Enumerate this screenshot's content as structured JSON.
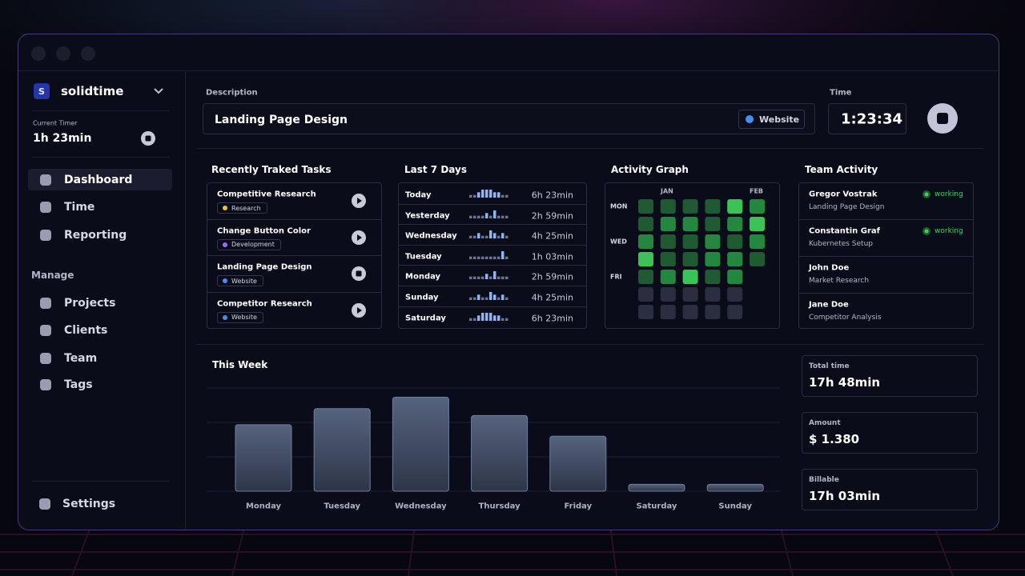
{
  "sidebar": {
    "org_initial": "S",
    "org": "solidtime",
    "current_timer_label": "Current Timer",
    "current_timer": "1h 23min",
    "nav": [
      "Dashboard",
      "Time",
      "Reporting"
    ],
    "manage_label": "Manage",
    "manage": [
      "Projects",
      "Clients",
      "Team",
      "Tags"
    ],
    "settings": "Settings"
  },
  "timer": {
    "description_label": "Description",
    "description": "Landing Page Design",
    "project": "Website",
    "project_color": "#4a8df0",
    "time_label": "Time",
    "time": "1:23:34"
  },
  "recent": {
    "title": "Recently Traked Tasks",
    "tasks": [
      {
        "name": "Competitive Research",
        "project": "Research",
        "color": "#f2c230",
        "running": false
      },
      {
        "name": "Change Button Color",
        "project": "Development",
        "color": "#9b6cf0",
        "running": false
      },
      {
        "name": "Landing Page Design",
        "project": "Website",
        "color": "#4a8df0",
        "running": true
      },
      {
        "name": "Competitor Research",
        "project": "Website",
        "color": "#4a8df0",
        "running": false
      }
    ]
  },
  "last7": {
    "title": "Last 7 Days",
    "days": [
      {
        "day": "Today",
        "duration": "6h 23min",
        "spark": [
          1,
          1,
          2,
          3,
          3,
          3,
          2,
          2,
          1,
          1
        ]
      },
      {
        "day": "Yesterday",
        "duration": "2h 59min",
        "spark": [
          1,
          1,
          1,
          1,
          2,
          1,
          3,
          1,
          1,
          1
        ]
      },
      {
        "day": "Wednesday",
        "duration": "4h 25min",
        "spark": [
          1,
          1,
          2,
          1,
          1,
          3,
          2,
          1,
          2,
          1
        ]
      },
      {
        "day": "Tuesday",
        "duration": "1h 03min",
        "spark": [
          1,
          1,
          1,
          1,
          1,
          1,
          1,
          1,
          3,
          1
        ]
      },
      {
        "day": "Monday",
        "duration": "2h 59min",
        "spark": [
          1,
          1,
          1,
          1,
          2,
          1,
          3,
          1,
          1,
          1
        ]
      },
      {
        "day": "Sunday",
        "duration": "4h 25min",
        "spark": [
          1,
          1,
          2,
          1,
          1,
          3,
          2,
          1,
          2,
          1
        ]
      },
      {
        "day": "Saturday",
        "duration": "6h 23min",
        "spark": [
          1,
          1,
          2,
          3,
          3,
          3,
          2,
          2,
          1,
          1
        ]
      }
    ]
  },
  "activity": {
    "title": "Activity Graph",
    "months": [
      "JAN",
      "FEB"
    ],
    "weekdays": [
      "MON",
      "WED",
      "FRI"
    ],
    "colors": [
      "#2a2e40",
      "#1f5a32",
      "#23873f",
      "#3cc257"
    ],
    "levels": [
      [
        1,
        1,
        1,
        1,
        3,
        2
      ],
      [
        1,
        2,
        2,
        1,
        2,
        3
      ],
      [
        2,
        1,
        1,
        2,
        1,
        2
      ],
      [
        3,
        1,
        1,
        2,
        2,
        1
      ],
      [
        1,
        2,
        3,
        1,
        2,
        null
      ],
      [
        0,
        0,
        0,
        0,
        0,
        null
      ],
      [
        0,
        0,
        0,
        0,
        0,
        null
      ]
    ]
  },
  "team": {
    "title": "Team Activity",
    "members": [
      {
        "name": "Gregor Vostrak",
        "task": "Landing Page Design",
        "status": "working"
      },
      {
        "name": "Constantin Graf",
        "task": "Kubernetes Setup",
        "status": "working"
      },
      {
        "name": "John Doe",
        "task": "Market Research"
      },
      {
        "name": "Jane Doe",
        "task": "Competitor Analysis"
      }
    ]
  },
  "this_week": {
    "title": "This Week",
    "categories": [
      "Monday",
      "Tuesday",
      "Wednesday",
      "Thursday",
      "Friday",
      "Saturday",
      "Sunday"
    ],
    "values": [
      2.9,
      3.6,
      4.1,
      3.3,
      2.4,
      0.3,
      0.3
    ],
    "ylim": [
      0,
      4.5
    ],
    "yticks": [
      0,
      1.5,
      3,
      4.5
    ],
    "color": "#56637e"
  },
  "stats": [
    {
      "label": "Total time",
      "value": "17h 48min"
    },
    {
      "label": "Amount",
      "value": "$ 1.380"
    },
    {
      "label": "Billable",
      "value": "17h 03min"
    }
  ]
}
